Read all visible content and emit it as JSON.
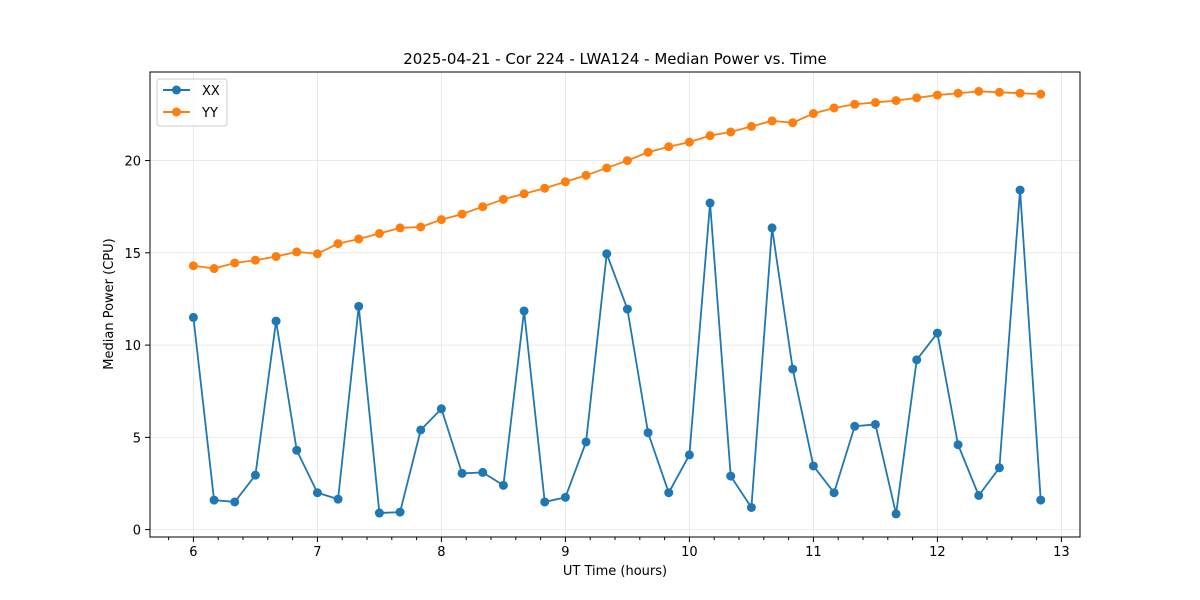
{
  "chart_data": {
    "type": "line",
    "title": "2025-04-21 - Cor 224 - LWA124 - Median Power vs. Time",
    "xlabel": "UT Time (hours)",
    "ylabel": "Median Power (CPU)",
    "xlim": [
      5.65,
      13.15
    ],
    "ylim": [
      -0.4,
      24.8
    ],
    "xticks": [
      6,
      7,
      8,
      9,
      10,
      11,
      12,
      13
    ],
    "yticks": [
      0,
      5,
      10,
      15,
      20
    ],
    "minor_xtick_step": 0.2,
    "grid": true,
    "legend_position": "top-left",
    "x": [
      6.0,
      6.1667,
      6.3333,
      6.5,
      6.6667,
      6.8333,
      7.0,
      7.1667,
      7.3333,
      7.5,
      7.6667,
      7.8333,
      8.0,
      8.1667,
      8.3333,
      8.5,
      8.6667,
      8.8333,
      9.0,
      9.1667,
      9.3333,
      9.5,
      9.6667,
      9.8333,
      10.0,
      10.1667,
      10.3333,
      10.5,
      10.6667,
      10.8333,
      11.0,
      11.1667,
      11.3333,
      11.5,
      11.6667,
      11.8333,
      12.0,
      12.1667,
      12.3333,
      12.5,
      12.6667,
      12.8333
    ],
    "series": [
      {
        "name": "XX",
        "color": "#1f77b4",
        "values": [
          11.5,
          1.6,
          1.5,
          2.95,
          11.3,
          4.3,
          2.0,
          1.65,
          12.1,
          0.9,
          0.95,
          5.4,
          6.55,
          3.05,
          3.1,
          2.4,
          11.85,
          1.5,
          1.75,
          4.75,
          14.95,
          11.95,
          5.25,
          2.0,
          4.05,
          17.7,
          2.9,
          1.2,
          16.35,
          8.7,
          3.45,
          2.0,
          5.6,
          5.7,
          0.85,
          9.2,
          10.65,
          4.6,
          1.85,
          3.35,
          18.4,
          1.6
        ]
      },
      {
        "name": "YY",
        "color": "#ff7f0e",
        "values": [
          14.3,
          14.15,
          14.45,
          14.6,
          14.8,
          15.05,
          14.95,
          15.5,
          15.75,
          16.05,
          16.35,
          16.4,
          16.8,
          17.1,
          17.5,
          17.9,
          18.2,
          18.5,
          18.85,
          19.2,
          19.6,
          20.0,
          20.45,
          20.75,
          21.0,
          21.35,
          21.55,
          21.85,
          22.15,
          22.05,
          22.55,
          22.85,
          23.05,
          23.15,
          23.25,
          23.4,
          23.55,
          23.65,
          23.75,
          23.7,
          23.65,
          23.6
        ]
      }
    ]
  }
}
